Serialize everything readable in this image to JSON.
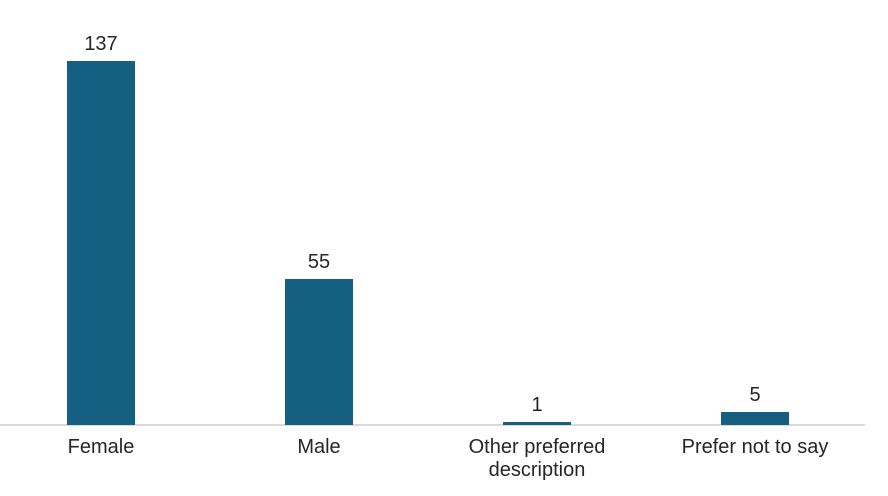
{
  "chart_data": {
    "type": "bar",
    "categories": [
      "Female",
      "Male",
      "Other preferred description",
      "Prefer not to say"
    ],
    "values": [
      137,
      55,
      1,
      5
    ],
    "data_labels": [
      "137",
      "55",
      "1",
      "5"
    ],
    "title": "",
    "xlabel": "",
    "ylabel": "",
    "legend": false,
    "grid": false,
    "y_axis_visible": false,
    "bar_color": "#156082",
    "axis_line_color": "#D9D9D9",
    "label_color": "#262626",
    "background_color": "#FFFFFF"
  }
}
